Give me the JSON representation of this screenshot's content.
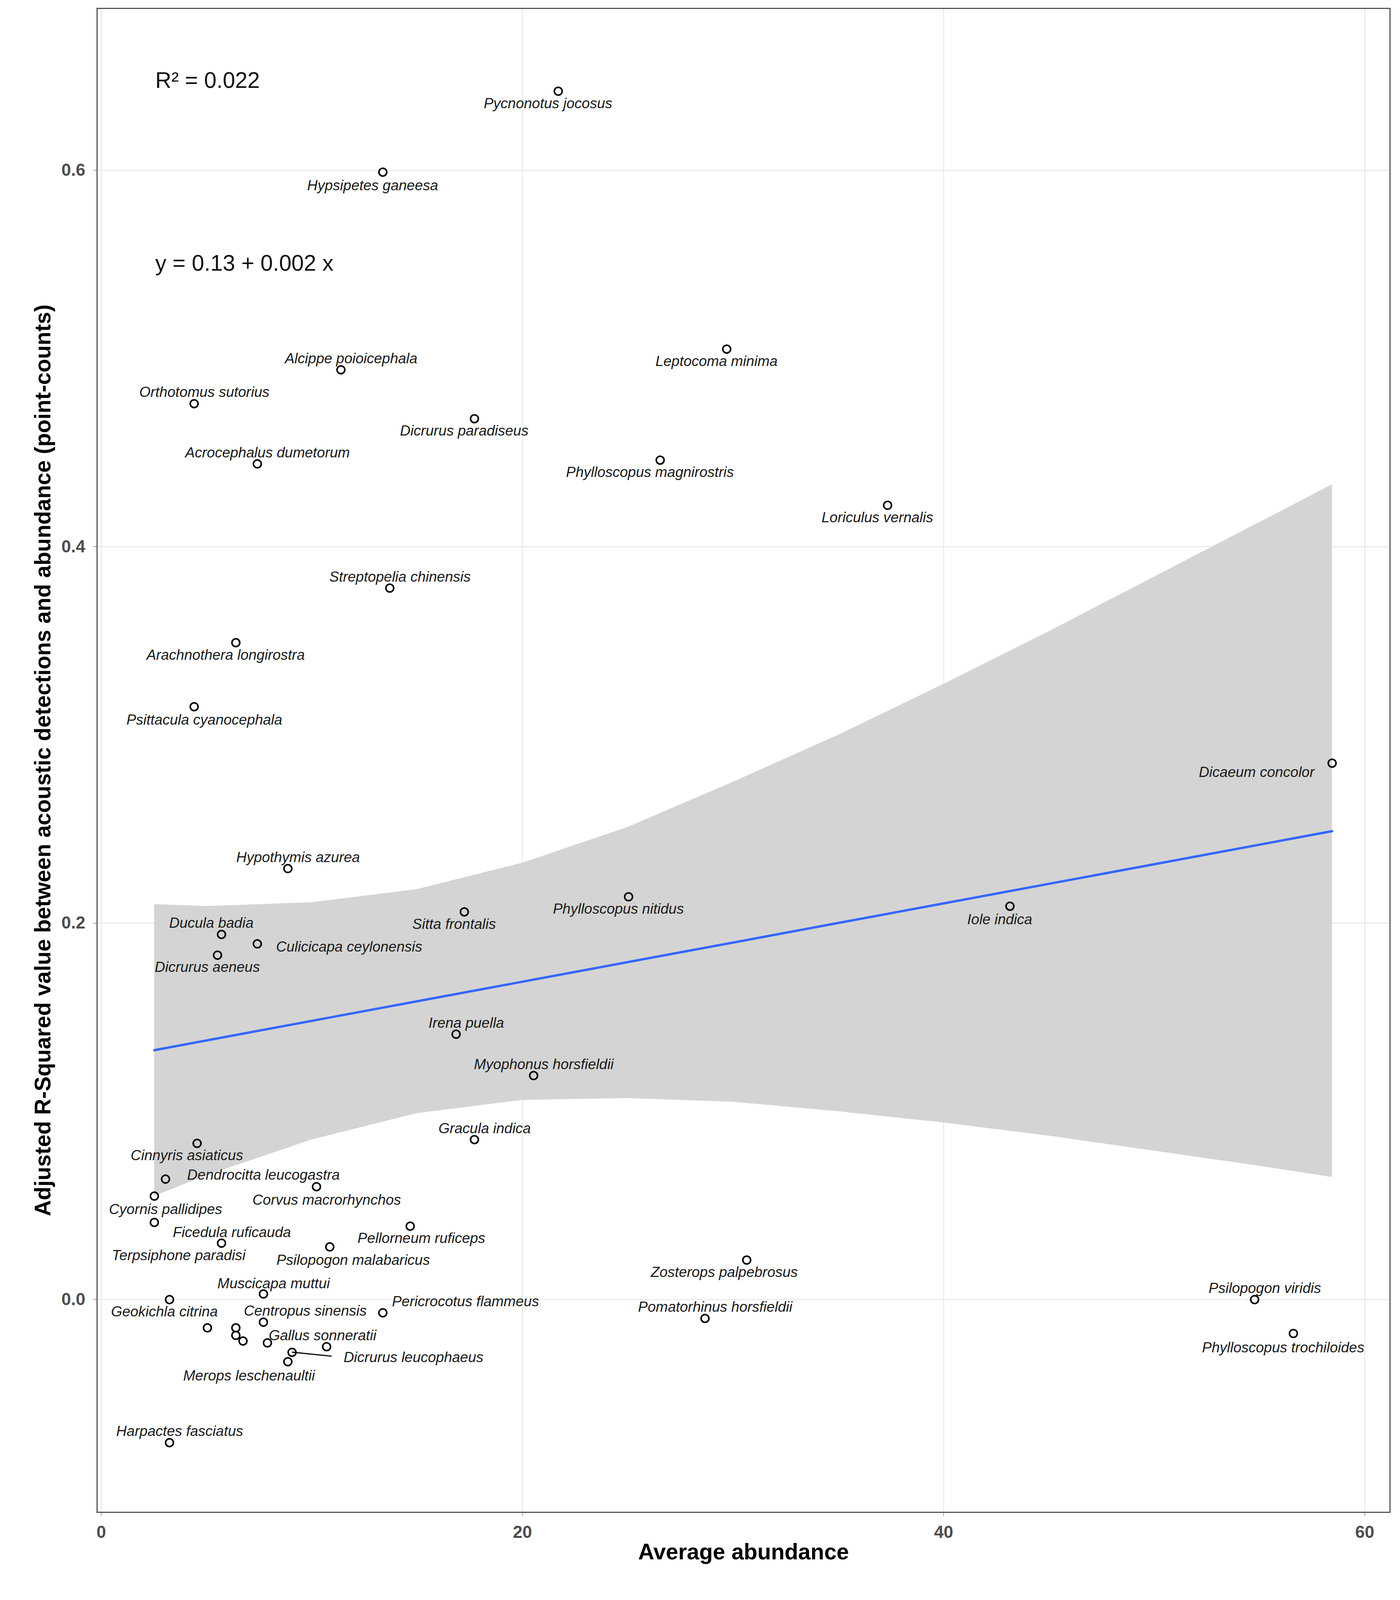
{
  "chart_data": {
    "type": "scatter",
    "x_label": "Average abundance",
    "y_label": "Adjusted R-Squared value between acoustic detections and abundance (point-counts)",
    "annotations": [
      "R² = 0.022",
      "y = 0.13 + 0.002 x"
    ],
    "marker": "circle",
    "grid": true,
    "xlim": [
      -0.2,
      61.2
    ],
    "ylim": [
      -0.113,
      0.686
    ],
    "xticks": [
      0,
      20,
      40,
      60
    ],
    "yticks": [
      {
        "value": 0,
        "label": "0.0"
      },
      {
        "value": 0.2,
        "label": "0.2"
      },
      {
        "value": 0.4,
        "label": "0.4"
      },
      {
        "value": 0.6,
        "label": "0.6"
      }
    ],
    "labels": [
      "Pycnonotus jocosus",
      "Hypsipetes ganeesa",
      "Leptocoma minima",
      "Alcippe poioicephala",
      "Orthotomus sutorius",
      "Dicrurus paradiseus",
      "Acrocephalus dumetorum",
      "Phylloscopus magnirostris",
      "Loriculus vernalis",
      "Streptopelia chinensis",
      "Arachnothera longirostra",
      "Psittacula cyanocephala",
      "Dicaeum concolor",
      "Hypothymis azurea",
      "Phylloscopus nitidus",
      "Iole indica",
      "Sitta frontalis",
      "Ducula badia",
      "Culicicapa ceylonensis",
      "Dicrurus aeneus",
      "Irena puella",
      "Myophonus horsfieldii",
      "Gracula indica",
      "Cinnyris asiaticus",
      "Dendrocitta leucogastra",
      "Corvus macrorhynchos",
      "Cyornis pallidipes",
      "Ficedula ruficauda",
      "Pellorneum ruficeps",
      "Terpsiphone paradisi",
      "Psilopogon malabaricus",
      "Zosterops palpebrosus",
      "Muscicapa muttui",
      "Geokichla citrina",
      "Psilopogon viridis",
      "Pericrocotus flammeus",
      "Centropus sinensis",
      "Pomatorhinus horsfieldii",
      "Phylloscopus trochiloides",
      "Gallus sonneratii",
      "Dicrurus leucophaeus",
      "Merops leschenaultii",
      "Harpactes fasciatus",
      null,
      null,
      null,
      null,
      null
    ],
    "x": [
      21.7,
      13.37,
      29.7,
      11.38,
      4.41,
      17.72,
      7.41,
      26.54,
      37.34,
      13.7,
      6.39,
      4.41,
      58.45,
      8.86,
      25.04,
      43.15,
      17.24,
      5.71,
      7.41,
      5.52,
      16.85,
      20.53,
      17.72,
      4.55,
      3.05,
      10.22,
      2.52,
      2.52,
      14.67,
      5.71,
      10.85,
      30.65,
      7.7,
      3.24,
      54.77,
      13.37,
      7.7,
      28.67,
      56.61,
      7.89,
      9.06,
      8.86,
      3.24,
      5.04,
      6.39,
      6.39,
      6.73,
      10.7
    ],
    "y": [
      0.642,
      0.599,
      0.505,
      0.494,
      0.476,
      0.468,
      0.444,
      0.446,
      0.422,
      0.378,
      0.349,
      0.315,
      0.285,
      0.229,
      0.214,
      0.209,
      0.206,
      0.194,
      0.189,
      0.183,
      0.141,
      0.119,
      0.085,
      0.083,
      0.064,
      0.06,
      0.055,
      0.041,
      0.039,
      0.03,
      0.028,
      0.021,
      0.003,
      0.0,
      0.0,
      -0.007,
      -0.012,
      -0.01,
      -0.018,
      -0.023,
      -0.028,
      -0.033,
      -0.076,
      -0.015,
      -0.015,
      -0.019,
      -0.022,
      -0.025
    ],
    "fit": {
      "color": "#3366FF",
      "x": [
        2.52,
        5,
        10,
        15,
        20,
        25,
        30,
        35,
        40,
        45,
        50,
        55,
        58.45
      ],
      "y": [
        0.1325,
        0.1377,
        0.1481,
        0.1585,
        0.1689,
        0.1793,
        0.1897,
        0.2001,
        0.2105,
        0.2209,
        0.2313,
        0.2417,
        0.2489
      ],
      "ymin": [
        0.055,
        0.066,
        0.085,
        0.099,
        0.106,
        0.107,
        0.105,
        0.1,
        0.094,
        0.087,
        0.079,
        0.071,
        0.065
      ],
      "ymax": [
        0.21,
        0.209,
        0.211,
        0.218,
        0.232,
        0.251,
        0.275,
        0.3,
        0.327,
        0.355,
        0.384,
        0.413,
        0.433
      ]
    }
  }
}
